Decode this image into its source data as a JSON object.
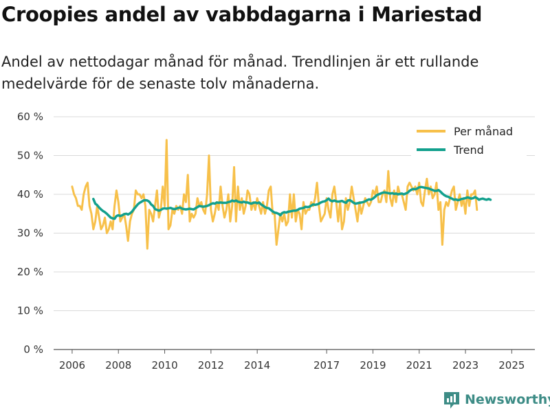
{
  "title": "Croopies andel av vabbdagarna i Mariestad",
  "subtitle": "Andel av nettodagar månad för månad. Trendlinjen är ett rullande medelvärde för de senaste tolv månaderna.",
  "brand": "Newsworthy",
  "colors": {
    "monthly": "#f7c04a",
    "trend": "#12a08d",
    "grid": "#d9d9d9",
    "brand": "#3d8c86"
  },
  "chart_data": {
    "type": "line",
    "ylim": [
      0,
      60
    ],
    "yticks": [
      0,
      10,
      20,
      30,
      40,
      50,
      60
    ],
    "ytick_labels": [
      "0 %",
      "10 %",
      "20 %",
      "30 %",
      "40 %",
      "50 %",
      "60 %"
    ],
    "xlim": [
      2005.2,
      2026.0
    ],
    "xticks": [
      2006,
      2008,
      2010,
      2012,
      2014,
      2017,
      2019,
      2021,
      2023,
      2025
    ],
    "xtick_labels": [
      "2006",
      "2008",
      "2010",
      "2012",
      "2014",
      "2017",
      "2019",
      "2021",
      "2023",
      "2025"
    ],
    "legend": [
      "Per månad",
      "Trend"
    ],
    "legend_position": "top-right",
    "series": [
      {
        "name": "Per månad",
        "x_start": 2006.0,
        "x_step": 0.08333,
        "values": [
          42,
          40,
          39,
          37,
          37,
          36,
          40,
          42,
          43,
          37,
          35,
          31,
          33,
          37,
          34,
          31,
          32,
          34,
          30,
          31,
          33,
          31,
          37,
          41,
          38,
          33,
          34,
          35,
          32,
          28,
          33,
          35,
          36,
          41,
          40,
          40,
          39,
          40,
          37,
          26,
          36,
          35,
          33,
          37,
          41,
          34,
          36,
          42,
          37,
          54,
          31,
          32,
          36,
          35,
          37,
          36,
          37,
          35,
          40,
          38,
          45,
          33,
          35,
          34,
          35,
          39,
          37,
          38,
          36,
          35,
          40,
          50,
          36,
          33,
          35,
          38,
          36,
          42,
          37,
          34,
          36,
          40,
          33,
          37,
          47,
          33,
          42,
          36,
          39,
          35,
          37,
          41,
          40,
          36,
          38,
          36,
          39,
          37,
          35,
          38,
          35,
          37,
          41,
          42,
          35,
          35,
          27,
          31,
          35,
          33,
          35,
          32,
          33,
          40,
          34,
          40,
          33,
          36,
          35,
          31,
          38,
          35,
          36,
          36,
          38,
          37,
          39,
          43,
          37,
          33,
          34,
          35,
          39,
          36,
          34,
          40,
          42,
          38,
          33,
          38,
          31,
          33,
          39,
          36,
          38,
          42,
          39,
          36,
          33,
          38,
          35,
          37,
          39,
          38,
          37,
          38,
          41,
          40,
          42,
          38,
          38,
          40,
          41,
          38,
          46,
          39,
          37,
          41,
          38,
          42,
          40,
          40,
          38,
          36,
          42,
          43,
          42,
          41,
          42,
          40,
          43,
          38,
          37,
          41,
          44,
          40,
          42,
          39,
          40,
          43,
          36,
          38,
          27,
          36,
          38,
          37,
          39,
          41,
          42,
          36,
          38,
          40,
          37,
          39,
          35,
          41,
          37,
          40,
          40,
          41,
          36
        ]
      },
      {
        "name": "Trend",
        "x_start": 2006.917,
        "x_step": 0.08333,
        "values": [
          38.8,
          37.6,
          37.2,
          36.6,
          36.1,
          35.7,
          35.4,
          35.0,
          34.5,
          34.0,
          33.8,
          33.7,
          34.4,
          34.6,
          34.4,
          34.6,
          34.9,
          35.0,
          34.8,
          35.1,
          35.5,
          36.2,
          36.8,
          37.4,
          37.8,
          38.1,
          38.4,
          38.5,
          38.4,
          38.1,
          37.4,
          37.0,
          36.2,
          36.0,
          35.8,
          36.0,
          36.3,
          36.4,
          36.3,
          36.4,
          36.5,
          36.3,
          36.2,
          36.3,
          36.5,
          36.6,
          36.3,
          36.2,
          36.1,
          36.2,
          36.3,
          36.2,
          36.1,
          36.4,
          36.7,
          37.0,
          36.9,
          36.8,
          36.9,
          37.0,
          37.2,
          37.5,
          37.7,
          37.6,
          37.9,
          37.8,
          37.9,
          37.8,
          37.8,
          37.8,
          38.0,
          38.1,
          38.4,
          38.2,
          38.4,
          38.1,
          38.0,
          37.9,
          38.1,
          37.9,
          37.9,
          37.7,
          37.6,
          37.8,
          37.9,
          37.7,
          37.9,
          37.4,
          37.1,
          36.7,
          36.5,
          36.4,
          36.0,
          35.6,
          35.3,
          35.2,
          35.0,
          34.6,
          35.2,
          35.4,
          35.3,
          35.5,
          35.6,
          35.7,
          35.8,
          35.8,
          36.0,
          36.3,
          36.4,
          36.5,
          36.8,
          36.7,
          36.8,
          37.1,
          37.4,
          37.3,
          37.4,
          37.6,
          37.9,
          38.1,
          38.2,
          38.5,
          38.9,
          38.4,
          38.2,
          38.4,
          38.2,
          38.1,
          38.2,
          38.3,
          38.0,
          37.8,
          38.4,
          38.5,
          38.2,
          37.8,
          37.6,
          37.7,
          37.8,
          37.9,
          38.0,
          38.2,
          38.5,
          38.7,
          38.6,
          38.9,
          39.3,
          39.8,
          40.0,
          40.2,
          40.4,
          40.5,
          40.4,
          40.3,
          40.2,
          40.3,
          40.1,
          40.2,
          40.0,
          40.1,
          40.2,
          40.0,
          40.2,
          40.4,
          40.9,
          41.2,
          41.4,
          41.3,
          41.5,
          41.8,
          41.9,
          41.8,
          41.7,
          41.6,
          41.5,
          41.3,
          41.1,
          40.9,
          40.9,
          41.1,
          40.7,
          40.2,
          39.8,
          39.5,
          39.4,
          39.1,
          38.9,
          38.6,
          38.7,
          38.5,
          38.6,
          38.8,
          38.9,
          39.0,
          39.2,
          39.1,
          38.9,
          39.0,
          39.3,
          39.0,
          38.6,
          38.8,
          38.9,
          38.7,
          38.6,
          38.8,
          38.6
        ]
      }
    ]
  }
}
